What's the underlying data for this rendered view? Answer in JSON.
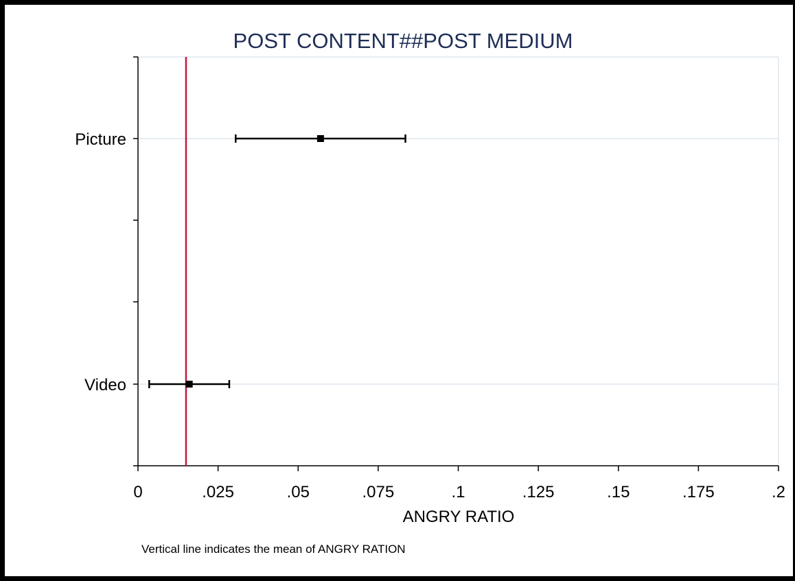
{
  "chart_data": {
    "type": "scatter",
    "title": "POST CONTENT##POST MEDIUM",
    "xlabel": "ANGRY RATIO",
    "ylabel": "",
    "note": "Vertical line indicates the mean of ANGRY RATION",
    "xlim": [
      0,
      0.2
    ],
    "x_ticks": [
      0,
      0.025,
      0.05,
      0.075,
      0.1,
      0.125,
      0.15,
      0.175,
      0.2
    ],
    "x_tick_labels": [
      "0",
      ".025",
      ".05",
      ".075",
      ".1",
      ".125",
      ".15",
      ".175",
      ".2"
    ],
    "categories": [
      "Picture",
      "Video"
    ],
    "points": [
      {
        "category": "Picture",
        "estimate": 0.057,
        "ci_low": 0.0305,
        "ci_high": 0.0835
      },
      {
        "category": "Video",
        "estimate": 0.016,
        "ci_low": 0.0035,
        "ci_high": 0.0285
      }
    ],
    "reference_line": {
      "x": 0.015,
      "color": "#c4163f"
    },
    "grid": true,
    "colors": {
      "marker": "#000000",
      "grid": "#e6edf2",
      "title": "#1e2d57",
      "reference": "#c4163f"
    }
  }
}
